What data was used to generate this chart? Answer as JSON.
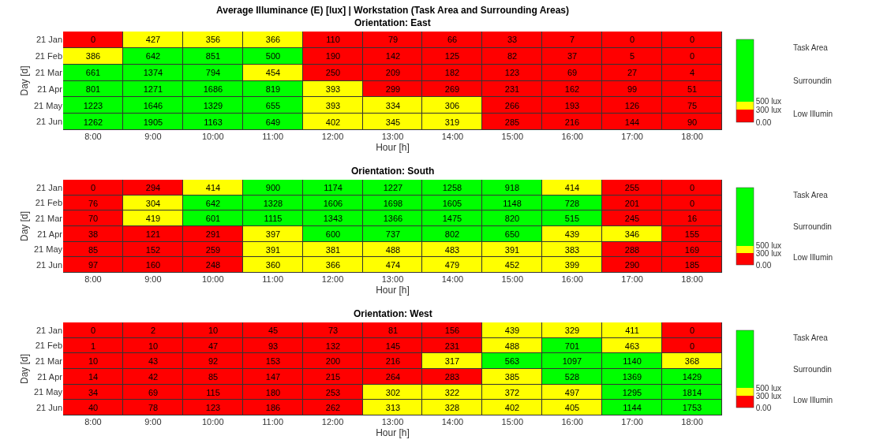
{
  "chart_data": [
    {
      "type": "heatmap",
      "title": "Average Illuminance (E) [lux] | Workstation (Task Area and Surrounding Areas)",
      "subtitle": "Orientation: East",
      "xlabel": "Hour [h]",
      "ylabel": "Day [d]",
      "categories": [
        "8:00",
        "9:00",
        "10:00",
        "11:00",
        "12:00",
        "13:00",
        "14:00",
        "15:00",
        "16:00",
        "17:00",
        "18:00"
      ],
      "y_categories": [
        "21 Jan",
        "21 Feb",
        "21 Mar",
        "21 Apr",
        "21 May",
        "21 Jun"
      ],
      "cells": [
        [
          0,
          427,
          356,
          366,
          110,
          79,
          66,
          33,
          7,
          0,
          0
        ],
        [
          386,
          642,
          851,
          500,
          190,
          142,
          125,
          82,
          37,
          5,
          0
        ],
        [
          661,
          1374,
          794,
          454,
          250,
          209,
          182,
          123,
          69,
          27,
          4
        ],
        [
          801,
          1271,
          1686,
          819,
          393,
          299,
          269,
          231,
          162,
          99,
          51
        ],
        [
          1223,
          1646,
          1329,
          655,
          393,
          334,
          306,
          266,
          193,
          126,
          75
        ],
        [
          1262,
          1905,
          1163,
          649,
          402,
          345,
          319,
          285,
          216,
          144,
          90
        ]
      ],
      "data_labels": true,
      "colors": [
        "#ff0000",
        "#ffff00",
        "#00ff00"
      ],
      "clim": [
        0,
        2000
      ],
      "cticks": [
        {
          "value": 0,
          "label": "0.00"
        },
        {
          "value": 300,
          "label": "300 lux"
        },
        {
          "value": 500,
          "label": "500 lux"
        }
      ],
      "annotations": [
        "Task Area",
        "Surroundin",
        "Low Illumin"
      ]
    },
    {
      "type": "heatmap",
      "title": "Orientation: South",
      "xlabel": "Hour [h]",
      "ylabel": "Day [d]",
      "categories": [
        "8:00",
        "9:00",
        "10:00",
        "11:00",
        "12:00",
        "13:00",
        "14:00",
        "15:00",
        "16:00",
        "17:00",
        "18:00"
      ],
      "y_categories": [
        "21 Jan",
        "21 Feb",
        "21 Mar",
        "21 Apr",
        "21 May",
        "21 Jun"
      ],
      "cells": [
        [
          0,
          294,
          414,
          900,
          1174,
          1227,
          1258,
          918,
          414,
          255,
          0
        ],
        [
          76,
          304,
          642,
          1328,
          1606,
          1698,
          1605,
          1148,
          728,
          201,
          0
        ],
        [
          70,
          419,
          601,
          1115,
          1343,
          1366,
          1475,
          820,
          515,
          245,
          16
        ],
        [
          38,
          121,
          291,
          397,
          600,
          737,
          802,
          650,
          439,
          346,
          155
        ],
        [
          85,
          152,
          259,
          391,
          381,
          488,
          483,
          391,
          383,
          288,
          169
        ],
        [
          97,
          160,
          248,
          360,
          366,
          474,
          479,
          452,
          399,
          290,
          185
        ]
      ],
      "data_labels": true,
      "colors": [
        "#ff0000",
        "#ffff00",
        "#00ff00"
      ],
      "clim": [
        0,
        2000
      ],
      "cticks": [
        {
          "value": 0,
          "label": "0.00"
        },
        {
          "value": 300,
          "label": "300 lux"
        },
        {
          "value": 500,
          "label": "500 lux"
        }
      ],
      "annotations": [
        "Task Area",
        "Surroundin",
        "Low Illumin"
      ]
    },
    {
      "type": "heatmap",
      "title": "Orientation: West",
      "xlabel": "Hour [h]",
      "ylabel": "Day [d]",
      "categories": [
        "8:00",
        "9:00",
        "10:00",
        "11:00",
        "12:00",
        "13:00",
        "14:00",
        "15:00",
        "16:00",
        "17:00",
        "18:00"
      ],
      "y_categories": [
        "21 Jan",
        "21 Feb",
        "21 Mar",
        "21 Apr",
        "21 May",
        "21 Jun"
      ],
      "cells": [
        [
          0,
          2,
          10,
          45,
          73,
          81,
          156,
          439,
          329,
          411,
          0
        ],
        [
          1,
          10,
          47,
          93,
          132,
          145,
          231,
          488,
          701,
          463,
          0
        ],
        [
          10,
          43,
          92,
          153,
          200,
          216,
          317,
          563,
          1097,
          1140,
          368
        ],
        [
          14,
          42,
          85,
          147,
          215,
          264,
          283,
          385,
          528,
          1369,
          1429
        ],
        [
          34,
          69,
          115,
          180,
          253,
          302,
          322,
          372,
          497,
          1295,
          1814
        ],
        [
          40,
          78,
          123,
          186,
          262,
          313,
          328,
          402,
          405,
          1144,
          1753
        ]
      ],
      "data_labels": true,
      "colors": [
        "#ff0000",
        "#ffff00",
        "#00ff00"
      ],
      "clim": [
        0,
        2000
      ],
      "cticks": [
        {
          "value": 0,
          "label": "0.00"
        },
        {
          "value": 300,
          "label": "300 lux"
        },
        {
          "value": 500,
          "label": "500 lux"
        }
      ],
      "annotations": [
        "Task Area",
        "Surroundin",
        "Low Illumin"
      ]
    }
  ]
}
